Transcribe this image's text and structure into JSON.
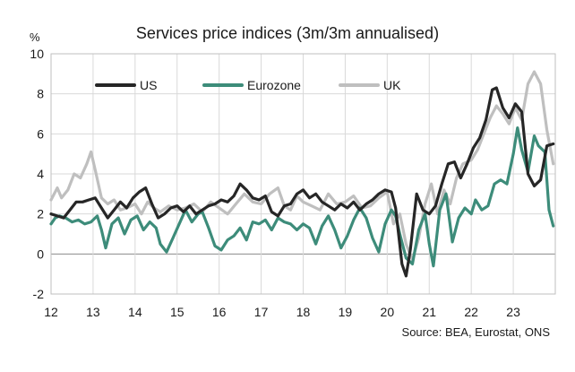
{
  "chart_data": {
    "type": "line",
    "title": "Services price indices (3m/3m annualised)",
    "ylabel": "%",
    "xlabel": "",
    "ylim": [
      -2,
      10
    ],
    "xlim": [
      2012.0,
      2024.0
    ],
    "yticks": [
      -2,
      0,
      2,
      4,
      6,
      8,
      10
    ],
    "xticks": [
      {
        "value": 2012,
        "label": "12"
      },
      {
        "value": 2013,
        "label": "13"
      },
      {
        "value": 2014,
        "label": "14"
      },
      {
        "value": 2015,
        "label": "15"
      },
      {
        "value": 2016,
        "label": "16"
      },
      {
        "value": 2017,
        "label": "17"
      },
      {
        "value": 2018,
        "label": "18"
      },
      {
        "value": 2019,
        "label": "19"
      },
      {
        "value": 2020,
        "label": "20"
      },
      {
        "value": 2021,
        "label": "21"
      },
      {
        "value": 2022,
        "label": "22"
      },
      {
        "value": 2023,
        "label": "23"
      }
    ],
    "legend_position": "top",
    "source": "Source: BEA, Eurostat, ONS",
    "series": [
      {
        "name": "UK",
        "color": "#bfbfbf",
        "x": [
          2012.0,
          2012.15,
          2012.25,
          2012.4,
          2012.55,
          2012.7,
          2012.85,
          2012.95,
          2013.05,
          2013.2,
          2013.35,
          2013.5,
          2013.65,
          2013.8,
          2014.0,
          2014.15,
          2014.3,
          2014.45,
          2014.6,
          2014.8,
          2015.0,
          2015.2,
          2015.4,
          2015.6,
          2015.8,
          2016.0,
          2016.2,
          2016.4,
          2016.6,
          2016.8,
          2017.0,
          2017.2,
          2017.4,
          2017.55,
          2017.7,
          2017.85,
          2018.0,
          2018.2,
          2018.4,
          2018.6,
          2018.8,
          2019.0,
          2019.2,
          2019.4,
          2019.6,
          2019.8,
          2020.0,
          2020.15,
          2020.3,
          2020.45,
          2020.6,
          2020.75,
          2020.9,
          2021.05,
          2021.2,
          2021.35,
          2021.5,
          2021.65,
          2021.8,
          2022.0,
          2022.15,
          2022.3,
          2022.45,
          2022.6,
          2022.75,
          2022.9,
          2023.05,
          2023.2,
          2023.35,
          2023.5,
          2023.65,
          2023.8,
          2023.95
        ],
        "values": [
          2.7,
          3.3,
          2.8,
          3.2,
          4.0,
          3.8,
          4.5,
          5.1,
          4.2,
          2.8,
          2.5,
          2.7,
          2.2,
          2.3,
          2.5,
          2.0,
          2.6,
          2.3,
          2.1,
          2.4,
          2.2,
          2.3,
          2.5,
          2.1,
          2.6,
          2.3,
          2.0,
          2.5,
          3.0,
          2.6,
          2.5,
          3.0,
          3.3,
          2.4,
          2.2,
          2.9,
          2.6,
          2.4,
          2.2,
          3.0,
          2.5,
          2.6,
          2.9,
          2.3,
          2.4,
          2.8,
          3.1,
          1.5,
          2.0,
          0.5,
          -0.3,
          0.8,
          2.5,
          3.5,
          2.0,
          3.2,
          2.5,
          3.8,
          4.5,
          4.7,
          5.2,
          6.0,
          6.8,
          7.4,
          7.0,
          6.5,
          7.3,
          6.7,
          8.5,
          9.1,
          8.5,
          6.2,
          4.5
        ]
      },
      {
        "name": "Eurozone",
        "color": "#3d8c7a",
        "x": [
          2012.0,
          2012.1,
          2012.2,
          2012.35,
          2012.5,
          2012.65,
          2012.8,
          2012.95,
          2013.1,
          2013.2,
          2013.3,
          2013.45,
          2013.6,
          2013.75,
          2013.9,
          2014.05,
          2014.2,
          2014.35,
          2014.5,
          2014.6,
          2014.75,
          2014.9,
          2015.05,
          2015.2,
          2015.35,
          2015.5,
          2015.6,
          2015.75,
          2015.9,
          2016.05,
          2016.2,
          2016.35,
          2016.5,
          2016.65,
          2016.8,
          2016.95,
          2017.1,
          2017.25,
          2017.4,
          2017.55,
          2017.7,
          2017.85,
          2018.0,
          2018.15,
          2018.3,
          2018.45,
          2018.6,
          2018.75,
          2018.9,
          2019.05,
          2019.2,
          2019.35,
          2019.5,
          2019.65,
          2019.8,
          2019.95,
          2020.1,
          2020.2,
          2020.3,
          2020.45,
          2020.6,
          2020.75,
          2020.9,
          2021.0,
          2021.1,
          2021.25,
          2021.4,
          2021.55,
          2021.7,
          2021.85,
          2022.0,
          2022.1,
          2022.25,
          2022.4,
          2022.55,
          2022.7,
          2022.85,
          2023.0,
          2023.1,
          2023.2,
          2023.35,
          2023.5,
          2023.6,
          2023.75,
          2023.85,
          2023.95
        ],
        "values": [
          1.5,
          1.8,
          1.9,
          1.8,
          1.6,
          1.7,
          1.5,
          1.6,
          1.9,
          1.2,
          0.3,
          1.5,
          1.8,
          1.0,
          1.7,
          1.9,
          1.2,
          1.6,
          1.3,
          0.5,
          0.1,
          0.8,
          1.5,
          2.2,
          1.6,
          2.0,
          2.1,
          1.3,
          0.4,
          0.2,
          0.7,
          0.9,
          1.3,
          0.7,
          1.6,
          1.5,
          1.7,
          1.2,
          1.8,
          1.6,
          1.5,
          1.2,
          1.5,
          1.3,
          0.5,
          1.4,
          1.9,
          1.2,
          0.3,
          0.9,
          1.7,
          2.3,
          1.8,
          0.8,
          0.1,
          1.5,
          2.2,
          1.9,
          1.0,
          -0.2,
          -0.5,
          1.2,
          2.0,
          0.5,
          -0.6,
          2.2,
          3.0,
          0.6,
          1.8,
          2.3,
          2.0,
          2.7,
          2.2,
          2.4,
          3.5,
          3.7,
          3.5,
          5.0,
          6.3,
          5.2,
          4.1,
          5.9,
          5.4,
          5.1,
          2.2,
          1.4
        ]
      },
      {
        "name": "US",
        "color": "#262626",
        "x": [
          2012.0,
          2012.15,
          2012.3,
          2012.45,
          2012.6,
          2012.75,
          2012.9,
          2013.05,
          2013.2,
          2013.35,
          2013.5,
          2013.65,
          2013.8,
          2013.95,
          2014.1,
          2014.25,
          2014.4,
          2014.55,
          2014.7,
          2014.85,
          2015.0,
          2015.15,
          2015.3,
          2015.45,
          2015.6,
          2015.75,
          2015.9,
          2016.05,
          2016.2,
          2016.35,
          2016.5,
          2016.65,
          2016.8,
          2016.95,
          2017.1,
          2017.25,
          2017.4,
          2017.55,
          2017.7,
          2017.85,
          2018.0,
          2018.15,
          2018.3,
          2018.45,
          2018.6,
          2018.75,
          2018.9,
          2019.05,
          2019.2,
          2019.35,
          2019.5,
          2019.65,
          2019.8,
          2019.95,
          2020.1,
          2020.2,
          2020.35,
          2020.45,
          2020.55,
          2020.7,
          2020.85,
          2021.0,
          2021.15,
          2021.3,
          2021.45,
          2021.6,
          2021.75,
          2021.9,
          2022.05,
          2022.2,
          2022.35,
          2022.5,
          2022.6,
          2022.75,
          2022.9,
          2023.05,
          2023.2,
          2023.35,
          2023.5,
          2023.65,
          2023.8,
          2023.95
        ],
        "values": [
          2.0,
          1.9,
          1.8,
          2.2,
          2.6,
          2.6,
          2.7,
          2.8,
          2.3,
          1.8,
          2.2,
          2.6,
          2.3,
          2.8,
          3.1,
          3.3,
          2.5,
          1.8,
          2.0,
          2.3,
          2.4,
          2.1,
          2.4,
          2.0,
          2.2,
          2.4,
          2.5,
          2.7,
          2.6,
          2.9,
          3.5,
          3.2,
          2.8,
          2.7,
          2.9,
          2.1,
          1.9,
          2.4,
          2.5,
          3.0,
          3.2,
          2.8,
          3.0,
          2.6,
          2.4,
          2.2,
          2.5,
          2.3,
          2.6,
          2.2,
          2.5,
          2.7,
          3.0,
          3.2,
          3.1,
          2.3,
          -0.5,
          -1.1,
          0.2,
          3.0,
          2.2,
          2.0,
          2.4,
          3.5,
          4.5,
          4.6,
          3.8,
          4.5,
          5.3,
          5.8,
          6.7,
          8.2,
          8.3,
          7.3,
          6.8,
          7.5,
          7.1,
          4.0,
          3.4,
          3.7,
          5.4,
          5.5
        ]
      }
    ]
  }
}
